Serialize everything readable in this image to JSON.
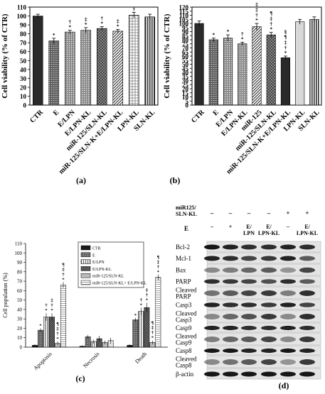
{
  "panels": {
    "a": {
      "label": "(a)",
      "chart_data": {
        "type": "bar",
        "ylabel": "Cell viability (% of CTR)",
        "ylim": [
          0,
          110
        ],
        "yticks": [
          0,
          10,
          20,
          30,
          40,
          50,
          60,
          70,
          80,
          90,
          100,
          110
        ],
        "categories": [
          "CTR",
          "E",
          "E/LPN",
          "E/LPN-KL",
          "miR-125/SLN-KL",
          "miR-125/SLN-K+E/LPN-KL",
          "LPN-KL",
          "SLN-KL"
        ],
        "values": [
          100,
          72,
          82,
          84,
          86,
          83,
          101,
          99
        ],
        "errors": [
          2,
          3,
          2,
          3,
          2,
          2,
          3,
          3
        ],
        "annotations": [
          "",
          "*",
          "†\n*",
          "‡\n*",
          "†\n*",
          "‡\n*",
          "†",
          ""
        ],
        "patterns": [
          "solid",
          "grid",
          "dots",
          "dots",
          "cross",
          "diag",
          "hgrid",
          "vstripe"
        ]
      }
    },
    "b": {
      "label": "(b)",
      "chart_data": {
        "type": "bar",
        "ylabel": "Cell viability (% of CTR)",
        "ylim": [
          0,
          120
        ],
        "yticks": [
          0,
          5,
          10,
          15,
          20,
          25,
          30,
          35,
          40,
          45,
          50,
          55,
          60,
          65,
          70,
          75,
          80,
          85,
          90,
          95,
          100,
          105,
          110,
          115,
          120
        ],
        "categories": [
          "CTR",
          "E",
          "E/LPN",
          "E/LPN-KL",
          "miR-125",
          "miR-125/SLN-KL",
          "miR-125/SLN-K+E/LPN-KL",
          "LPN-KL",
          "SLN-KL"
        ],
        "values": [
          100,
          80,
          82,
          75,
          96,
          86,
          58,
          102,
          105
        ],
        "errors": [
          3,
          2,
          4,
          2,
          4,
          3,
          2,
          3,
          3
        ],
        "annotations": [
          "",
          "*",
          "*",
          "†\n*",
          "‡\n‡\n†\n*",
          "¶\n‡\n†\n*",
          "§\n¶\n‡\n†\n*",
          "",
          ""
        ],
        "patterns": [
          "solid",
          "grid",
          "dots",
          "dots",
          "diag",
          "cross",
          "solid",
          "light",
          "vstripe"
        ]
      }
    },
    "c": {
      "label": "(c)",
      "chart_data": {
        "type": "bar",
        "ylabel": "Cell population (%)",
        "ylim": [
          0,
          110
        ],
        "yticks": [
          0,
          10,
          20,
          30,
          40,
          50,
          60,
          70,
          80,
          90,
          100,
          110
        ],
        "categories": [
          "Apoptosis",
          "Necrosis",
          "Death"
        ],
        "series": [
          {
            "name": "CTR",
            "values": [
              2,
              1,
              2
            ],
            "annotations": [
              "",
              "",
              ""
            ]
          },
          {
            "name": "E",
            "values": [
              18,
              11,
              29
            ],
            "annotations": [
              "*",
              "",
              "*"
            ]
          },
          {
            "name": "E/LPN",
            "values": [
              32,
              6,
              38
            ],
            "annotations": [
              "†\n*",
              "",
              "†\n*"
            ]
          },
          {
            "name": "E/LPN-KL",
            "values": [
              32,
              9,
              42
            ],
            "annotations": [
              "‡\n†\n*",
              "",
              "‡\n†\n*"
            ]
          },
          {
            "name": "miR-125/SLN-KL",
            "values": [
              4,
              5,
              5
            ],
            "annotations": [
              "¶\n‡\n†\n*",
              "",
              "¶\n‡\n†\n*"
            ]
          },
          {
            "name": "miR-125/SLN-KL+ E/LPN-KL",
            "values": [
              66,
              7,
              74
            ],
            "annotations": [
              "¶\n‡\n†\n*",
              "",
              "¶\n‡\n†\n*"
            ]
          }
        ],
        "errors": [
          [
            1,
            1,
            1
          ],
          [
            2,
            2,
            2
          ],
          [
            4,
            2,
            4
          ],
          [
            4,
            3,
            5
          ],
          [
            2,
            2,
            2
          ],
          [
            3,
            3,
            3
          ]
        ],
        "legend": "top-right"
      }
    },
    "d": {
      "label": "(d)",
      "header": {
        "row1_label": "miR125/\nSLN-KL",
        "row1_values": [
          "–",
          "–",
          "–",
          "–",
          "+",
          "+"
        ],
        "row2_label": "E",
        "row2_values": [
          "–",
          "+",
          "E/\nLPN",
          "E/\nLPN-KL",
          "–",
          "E/\nLPN-KL"
        ]
      },
      "bands": [
        "Bcl-2",
        "Mcl-1",
        "Bax",
        "PARP",
        "Cleaved\nPARP",
        "Casp3",
        "Cleaved\nCasp3",
        "Casp9",
        "Cleaved\nCasp9",
        "Casp8",
        "Cleaved\nCasp8",
        "β-actin"
      ]
    }
  }
}
